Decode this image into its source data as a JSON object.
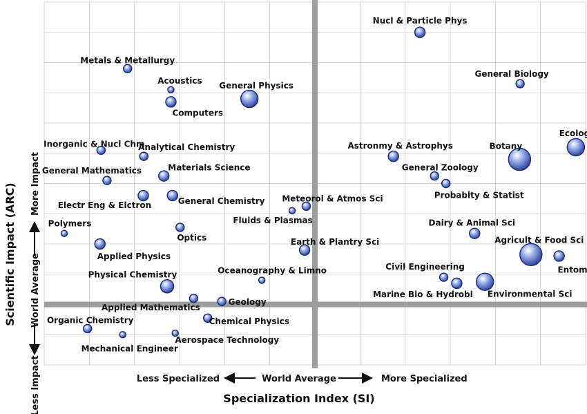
{
  "chart_data": {
    "type": "scatter",
    "title": "",
    "xlabel": "Specialization Index (SI)",
    "ylabel": "Scientific Impact (ARC)",
    "xlim": [
      0,
      10
    ],
    "ylim": [
      0,
      12
    ],
    "grid": true,
    "divider": {
      "x": 5,
      "y": 2
    },
    "x_scale": {
      "left": "Less Specialized",
      "center": "World Average",
      "right": "More Specialized"
    },
    "y_scale": {
      "bottom": "Less Impact",
      "center": "World Average",
      "top": "More Impact"
    },
    "points": [
      {
        "label": "Nucl & Particle Phys",
        "x": 6.94,
        "y": 11.0,
        "size": 3
      },
      {
        "label": "Metals & Metallurgy",
        "x": 1.54,
        "y": 9.8,
        "size": 2
      },
      {
        "label": "General Physics",
        "x": 3.79,
        "y": 8.8,
        "size": 5
      },
      {
        "label": "Acoustics",
        "x": 2.34,
        "y": 9.1,
        "size": 1
      },
      {
        "label": "Computers",
        "x": 2.34,
        "y": 8.7,
        "size": 3
      },
      {
        "label": "General Biology",
        "x": 8.79,
        "y": 9.3,
        "size": 2
      },
      {
        "label": "Inorganic & Nucl Chm",
        "x": 1.05,
        "y": 7.1,
        "size": 2
      },
      {
        "label": "Analytical Chemistry",
        "x": 1.84,
        "y": 6.9,
        "size": 2
      },
      {
        "label": "Ecology",
        "x": 9.82,
        "y": 7.2,
        "size": 5
      },
      {
        "label": "Astronmy & Astrophys",
        "x": 6.45,
        "y": 6.9,
        "size": 3
      },
      {
        "label": "Botany",
        "x": 8.78,
        "y": 6.8,
        "size": 6
      },
      {
        "label": "General Mathematics",
        "x": 1.16,
        "y": 6.1,
        "size": 2
      },
      {
        "label": "Materials Science",
        "x": 2.21,
        "y": 6.25,
        "size": 3
      },
      {
        "label": "General Zoology",
        "x": 7.21,
        "y": 6.25,
        "size": 2
      },
      {
        "label": "Probablty & Statist",
        "x": 7.42,
        "y": 6.0,
        "size": 2
      },
      {
        "label": "Electr Eng & Elctron",
        "x": 1.83,
        "y": 5.6,
        "size": 3
      },
      {
        "label": "General Chemistry",
        "x": 2.37,
        "y": 5.6,
        "size": 3
      },
      {
        "label": "Meteorol & Atmos Sci",
        "x": 4.84,
        "y": 5.25,
        "size": 2
      },
      {
        "label": "Fluids & Plasmas",
        "x": 4.58,
        "y": 5.1,
        "size": 1
      },
      {
        "label": "Polymers",
        "x": 0.37,
        "y": 4.35,
        "size": 1
      },
      {
        "label": "Optics",
        "x": 2.51,
        "y": 4.55,
        "size": 2
      },
      {
        "label": "Dairy & Animal Sci",
        "x": 7.95,
        "y": 4.35,
        "size": 3
      },
      {
        "label": "Applied Physics",
        "x": 1.03,
        "y": 4.0,
        "size": 3
      },
      {
        "label": "Earth & Plantry Sci",
        "x": 4.81,
        "y": 3.8,
        "size": 3
      },
      {
        "label": "Agricult & Food Sci",
        "x": 8.99,
        "y": 3.65,
        "size": 6
      },
      {
        "label": "Entomology",
        "x": 9.51,
        "y": 3.6,
        "size": 3
      },
      {
        "label": "Civil Engineering",
        "x": 7.38,
        "y": 2.9,
        "size": 2
      },
      {
        "label": "Physical Chemistry",
        "x": 2.27,
        "y": 2.6,
        "size": 4
      },
      {
        "label": "Oceanography & Limno",
        "x": 4.02,
        "y": 2.8,
        "size": 1
      },
      {
        "label": "Marine Bio & Hydrobi",
        "x": 7.62,
        "y": 2.7,
        "size": 3
      },
      {
        "label": "Environmental Sci",
        "x": 8.14,
        "y": 2.75,
        "size": 5
      },
      {
        "label": "Applied Mathematics",
        "x": 2.76,
        "y": 2.2,
        "size": 2
      },
      {
        "label": "Geology",
        "x": 3.28,
        "y": 2.1,
        "size": 2
      },
      {
        "label": "Chemical Physics",
        "x": 3.02,
        "y": 1.55,
        "size": 2
      },
      {
        "label": "Organic Chemistry",
        "x": 0.8,
        "y": 1.2,
        "size": 2
      },
      {
        "label": "Mechanical Engineer",
        "x": 1.45,
        "y": 1.0,
        "size": 1
      },
      {
        "label": "Aerospace Technology",
        "x": 2.42,
        "y": 1.05,
        "size": 1
      }
    ]
  }
}
